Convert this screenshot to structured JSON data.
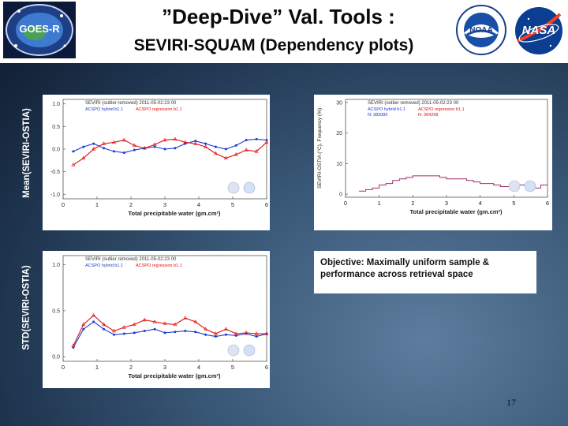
{
  "slide": {
    "title": "”Deep-Dive” Val. Tools :",
    "subtitle": "SEVIRI-SQUAM (Dependency plots)",
    "page_number": "17",
    "note": "Objective: Maximally uniform sample & performance across retrieval space"
  },
  "logos": {
    "left": {
      "icon": "goes-r-logo",
      "text": "GOES-R"
    },
    "middle": {
      "icon": "noaa-logo",
      "text": "NOAA"
    },
    "right": {
      "icon": "nasa-logo",
      "text": "NASA"
    }
  },
  "row_labels": {
    "top": "Mean(SEVIRI-OSTIA)",
    "bottom": "STD(SEVIRI-OSTIA)"
  },
  "chart_data": [
    {
      "type": "line",
      "title": "SEVIRI (outlier removed) 2011-05-02:23 00",
      "legend": [
        "ACSPO hybrid b1.1",
        "ACSPO regression b1.1"
      ],
      "xlabel": "Total precipitable water (gm.cm²)",
      "ylabel": "",
      "xlim": [
        0,
        6
      ],
      "ylim": [
        -1.1,
        1.1
      ],
      "xticks": [
        "0",
        "1",
        "2",
        "3",
        "4",
        "5",
        "6"
      ],
      "yticks": [
        "1.0",
        "0.5",
        "0.0",
        "-0.5",
        "-1.0"
      ],
      "ytick_values": [
        1.0,
        0.5,
        0.0,
        -0.5,
        -1.0
      ],
      "x": [
        0.3,
        0.6,
        0.9,
        1.2,
        1.5,
        1.8,
        2.1,
        2.4,
        2.7,
        3.0,
        3.3,
        3.6,
        3.9,
        4.2,
        4.5,
        4.8,
        5.1,
        5.4,
        5.7,
        6.0
      ],
      "series": [
        {
          "name": "ACSPO hybrid b1.1",
          "color": "#1a3ad0",
          "values": [
            -0.05,
            0.05,
            0.12,
            0.02,
            -0.05,
            -0.08,
            -0.02,
            0.02,
            0.05,
            0.0,
            0.02,
            0.12,
            0.18,
            0.12,
            0.05,
            0.0,
            0.08,
            0.2,
            0.22,
            0.2
          ]
        },
        {
          "name": "ACSPO regression b1.1",
          "color": "#e01010",
          "values": [
            -0.35,
            -0.2,
            0.0,
            0.12,
            0.15,
            0.2,
            0.08,
            0.02,
            0.1,
            0.2,
            0.22,
            0.15,
            0.12,
            0.05,
            -0.1,
            -0.2,
            -0.12,
            -0.02,
            -0.05,
            0.15
          ]
        }
      ]
    },
    {
      "type": "line",
      "title": "SEVIRI (outlier removed) 2011-05-02:23 00",
      "legend": [
        "ACSPO hybrid b1.1",
        "ACSPO regression b1.1"
      ],
      "counts": [
        "N: 383086",
        "N: 384298"
      ],
      "xlabel": "Total precipitable water (gm.cm²)",
      "ylabel": "SEVIRI-OSTIA (°C), Frequency (%)",
      "xlim": [
        0,
        6
      ],
      "ylim": [
        -1,
        31
      ],
      "xticks": [
        "0",
        "1",
        "2",
        "3",
        "4",
        "5",
        "6"
      ],
      "yticks": [
        "30",
        "20",
        "10",
        "0"
      ],
      "ytick_values": [
        30,
        20,
        10,
        0
      ],
      "x": [
        0.5,
        0.7,
        0.9,
        1.1,
        1.3,
        1.5,
        1.7,
        1.9,
        2.1,
        2.3,
        2.5,
        2.7,
        2.9,
        3.1,
        3.3,
        3.5,
        3.7,
        3.9,
        4.1,
        4.3,
        4.5,
        4.7,
        4.9,
        5.1,
        5.3,
        5.5,
        5.7,
        5.9
      ],
      "series": [
        {
          "name": "Frequency",
          "color": "#a02b6a",
          "values": [
            1,
            1.5,
            2,
            3,
            3.5,
            4.5,
            5,
            5.5,
            6,
            6,
            6,
            6,
            5.5,
            5,
            5,
            5,
            4.5,
            4,
            3.5,
            3.5,
            3,
            2.5,
            2.5,
            3,
            3,
            2.5,
            2,
            3
          ]
        }
      ]
    },
    {
      "type": "line",
      "title": "SEVIRI (outlier removed) 2011-05-02:23 00",
      "legend": [
        "ACSPO hybrid b1.1",
        "ACSPO regression b1.1"
      ],
      "xlabel": "Total precipitable water (gm.cm²)",
      "ylabel": "",
      "xlim": [
        0,
        6
      ],
      "ylim": [
        -0.05,
        1.1
      ],
      "xticks": [
        "0",
        "1",
        "2",
        "3",
        "4",
        "5",
        "6"
      ],
      "yticks": [
        "1.0",
        "0.5",
        "0.0"
      ],
      "ytick_values": [
        1.0,
        0.5,
        0.0
      ],
      "x": [
        0.3,
        0.6,
        0.9,
        1.2,
        1.5,
        1.8,
        2.1,
        2.4,
        2.7,
        3.0,
        3.3,
        3.6,
        3.9,
        4.2,
        4.5,
        4.8,
        5.1,
        5.4,
        5.7,
        6.0
      ],
      "series": [
        {
          "name": "ACSPO hybrid b1.1",
          "color": "#1a3ad0",
          "values": [
            0.1,
            0.3,
            0.38,
            0.3,
            0.24,
            0.25,
            0.26,
            0.28,
            0.3,
            0.26,
            0.27,
            0.28,
            0.27,
            0.24,
            0.22,
            0.24,
            0.23,
            0.25,
            0.22,
            0.25
          ]
        },
        {
          "name": "ACSPO regression b1.1",
          "color": "#e01010",
          "values": [
            0.12,
            0.35,
            0.45,
            0.35,
            0.28,
            0.32,
            0.35,
            0.4,
            0.38,
            0.36,
            0.35,
            0.42,
            0.38,
            0.3,
            0.25,
            0.3,
            0.25,
            0.26,
            0.25,
            0.25
          ]
        }
      ]
    }
  ]
}
